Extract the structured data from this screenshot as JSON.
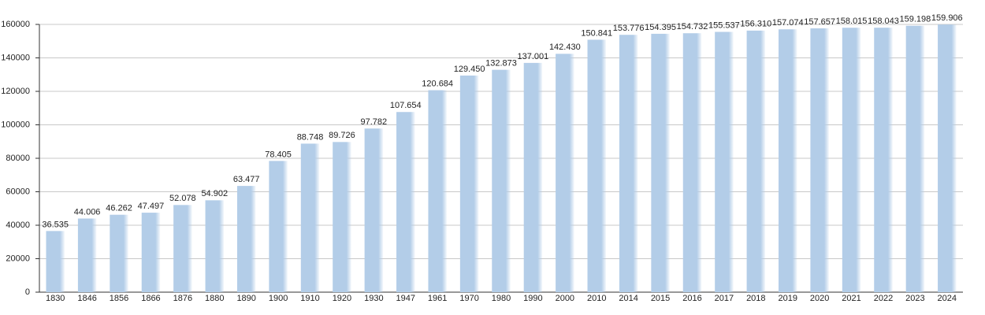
{
  "chart_data": {
    "type": "bar",
    "categories": [
      "1830",
      "1846",
      "1856",
      "1866",
      "1876",
      "1880",
      "1890",
      "1900",
      "1910",
      "1920",
      "1930",
      "1947",
      "1961",
      "1970",
      "1980",
      "1990",
      "2000",
      "2010",
      "2014",
      "2015",
      "2016",
      "2017",
      "2018",
      "2019",
      "2020",
      "2021",
      "2022",
      "2023",
      "2024"
    ],
    "values": [
      36535,
      44006,
      46262,
      47497,
      52078,
      54902,
      63477,
      78405,
      88748,
      89726,
      97782,
      107654,
      120684,
      129450,
      132873,
      137001,
      142430,
      150841,
      153776,
      154395,
      154732,
      155537,
      156310,
      157074,
      157657,
      158015,
      158043,
      159198,
      159906
    ],
    "value_labels": [
      "36.535",
      "44.006",
      "46.262",
      "47.497",
      "52.078",
      "54.902",
      "63.477",
      "78.405",
      "88.748",
      "89.726",
      "97.782",
      "107.654",
      "120.684",
      "129.450",
      "132.873",
      "137.001",
      "142.430",
      "150.841",
      "153.776",
      "154.395",
      "154.732",
      "155.537",
      "156.310",
      "157.074",
      "157.657",
      "158.015",
      "158.043",
      "159.198",
      "159.906"
    ],
    "color": "#b3cde8",
    "ylim": [
      0,
      160000
    ],
    "yticks": [
      0,
      20000,
      40000,
      60000,
      80000,
      100000,
      120000,
      140000,
      160000
    ],
    "grid": true
  }
}
